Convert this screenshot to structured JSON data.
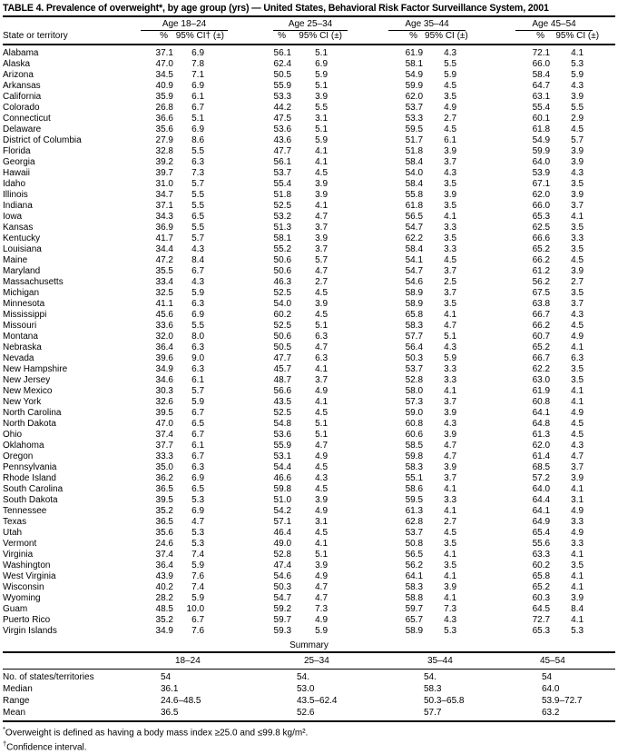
{
  "title": "TABLE 4. Prevalence of overweight*, by age group (yrs) — United States, Behavioral Risk Factor Surveillance System, 2001",
  "table": {
    "state_col_header": "State or territory",
    "groups": [
      {
        "label": "Age 18–24",
        "pct_header": "%",
        "ci_header": "95% CI† (±)"
      },
      {
        "label": "Age 25–34",
        "pct_header": "%",
        "ci_header": "95% CI (±)"
      },
      {
        "label": "Age 35–44",
        "pct_header": "%",
        "ci_header": "95% CI (±)"
      },
      {
        "label": "Age 45–54",
        "pct_header": "%",
        "ci_header": "95% CI (±)"
      }
    ],
    "rows": [
      {
        "state": "Alabama",
        "values": [
          "37.1",
          "6.9",
          "56.1",
          "5.1",
          "61.9",
          "4.3",
          "72.1",
          "4.1"
        ]
      },
      {
        "state": "Alaska",
        "values": [
          "47.0",
          "7.8",
          "62.4",
          "6.9",
          "58.1",
          "5.5",
          "66.0",
          "5.3"
        ]
      },
      {
        "state": "Arizona",
        "values": [
          "34.5",
          "7.1",
          "50.5",
          "5.9",
          "54.9",
          "5.9",
          "58.4",
          "5.9"
        ]
      },
      {
        "state": "Arkansas",
        "values": [
          "40.9",
          "6.9",
          "55.9",
          "5.1",
          "59.9",
          "4.5",
          "64.7",
          "4.3"
        ]
      },
      {
        "state": "California",
        "values": [
          "35.9",
          "6.1",
          "53.3",
          "3.9",
          "62.0",
          "3.5",
          "63.1",
          "3.9"
        ]
      },
      {
        "state": "Colorado",
        "values": [
          "26.8",
          "6.7",
          "44.2",
          "5.5",
          "53.7",
          "4.9",
          "55.4",
          "5.5"
        ]
      },
      {
        "state": "Connecticut",
        "values": [
          "36.6",
          "5.1",
          "47.5",
          "3.1",
          "53.3",
          "2.7",
          "60.1",
          "2.9"
        ]
      },
      {
        "state": "Delaware",
        "values": [
          "35.6",
          "6.9",
          "53.6",
          "5.1",
          "59.5",
          "4.5",
          "61.8",
          "4.5"
        ]
      },
      {
        "state": "District of Columbia",
        "values": [
          "27.9",
          "8.6",
          "43.6",
          "5.9",
          "51.7",
          "6.1",
          "54.9",
          "5.7"
        ]
      },
      {
        "state": "Florida",
        "values": [
          "32.8",
          "5.5",
          "47.7",
          "4.1",
          "51.8",
          "3.9",
          "59.9",
          "3.9"
        ]
      },
      {
        "state": "Georgia",
        "values": [
          "39.2",
          "6.3",
          "56.1",
          "4.1",
          "58.4",
          "3.7",
          "64.0",
          "3.9"
        ]
      },
      {
        "state": "Hawaii",
        "values": [
          "39.7",
          "7.3",
          "53.7",
          "4.5",
          "54.0",
          "4.3",
          "53.9",
          "4.3"
        ]
      },
      {
        "state": "Idaho",
        "values": [
          "31.0",
          "5.7",
          "55.4",
          "3.9",
          "58.4",
          "3.5",
          "67.1",
          "3.5"
        ]
      },
      {
        "state": "Illinois",
        "values": [
          "34.7",
          "5.5",
          "51.8",
          "3.9",
          "55.8",
          "3.9",
          "62.0",
          "3.9"
        ]
      },
      {
        "state": "Indiana",
        "values": [
          "37.1",
          "5.5",
          "52.5",
          "4.1",
          "61.8",
          "3.5",
          "66.0",
          "3.7"
        ]
      },
      {
        "state": "Iowa",
        "values": [
          "34.3",
          "6.5",
          "53.2",
          "4.7",
          "56.5",
          "4.1",
          "65.3",
          "4.1"
        ]
      },
      {
        "state": "Kansas",
        "values": [
          "36.9",
          "5.5",
          "51.3",
          "3.7",
          "54.7",
          "3.3",
          "62.5",
          "3.5"
        ]
      },
      {
        "state": "Kentucky",
        "values": [
          "41.7",
          "5.7",
          "58.1",
          "3.9",
          "62.2",
          "3.5",
          "66.6",
          "3.3"
        ]
      },
      {
        "state": "Louisiana",
        "values": [
          "34.4",
          "4.3",
          "55.2",
          "3.7",
          "58.4",
          "3.3",
          "65.2",
          "3.5"
        ]
      },
      {
        "state": "Maine",
        "values": [
          "47.2",
          "8.4",
          "50.6",
          "5.7",
          "54.1",
          "4.5",
          "66.2",
          "4.5"
        ]
      },
      {
        "state": "Maryland",
        "values": [
          "35.5",
          "6.7",
          "50.6",
          "4.7",
          "54.7",
          "3.7",
          "61.2",
          "3.9"
        ]
      },
      {
        "state": "Massachusetts",
        "values": [
          "33.4",
          "4.3",
          "46.3",
          "2.7",
          "54.6",
          "2.5",
          "56.2",
          "2.7"
        ]
      },
      {
        "state": "Michigan",
        "values": [
          "32.5",
          "5.9",
          "52.5",
          "4.5",
          "58.9",
          "3.7",
          "67.5",
          "3.5"
        ]
      },
      {
        "state": "Minnesota",
        "values": [
          "41.1",
          "6.3",
          "54.0",
          "3.9",
          "58.9",
          "3.5",
          "63.8",
          "3.7"
        ]
      },
      {
        "state": "Mississippi",
        "values": [
          "45.6",
          "6.9",
          "60.2",
          "4.5",
          "65.8",
          "4.1",
          "66.7",
          "4.3"
        ]
      },
      {
        "state": "Missouri",
        "values": [
          "33.6",
          "5.5",
          "52.5",
          "5.1",
          "58.3",
          "4.7",
          "66.2",
          "4.5"
        ]
      },
      {
        "state": "Montana",
        "values": [
          "32.0",
          "8.0",
          "50.6",
          "6.3",
          "57.7",
          "5.1",
          "60.7",
          "4.9"
        ]
      },
      {
        "state": "Nebraska",
        "values": [
          "36.4",
          "6.3",
          "50.5",
          "4.7",
          "56.4",
          "4.3",
          "65.2",
          "4.1"
        ]
      },
      {
        "state": "Nevada",
        "values": [
          "39.6",
          "9.0",
          "47.7",
          "6.3",
          "50.3",
          "5.9",
          "66.7",
          "6.3"
        ]
      },
      {
        "state": "New Hampshire",
        "values": [
          "34.9",
          "6.3",
          "45.7",
          "4.1",
          "53.7",
          "3.3",
          "62.2",
          "3.5"
        ]
      },
      {
        "state": "New Jersey",
        "values": [
          "34.6",
          "6.1",
          "48.7",
          "3.7",
          "52.8",
          "3.3",
          "63.0",
          "3.5"
        ]
      },
      {
        "state": "New Mexico",
        "values": [
          "30.3",
          "5.7",
          "56.6",
          "4.9",
          "58.0",
          "4.1",
          "61.9",
          "4.1"
        ]
      },
      {
        "state": "New York",
        "values": [
          "32.6",
          "5.9",
          "43.5",
          "4.1",
          "57.3",
          "3.7",
          "60.8",
          "4.1"
        ]
      },
      {
        "state": "North Carolina",
        "values": [
          "39.5",
          "6.7",
          "52.5",
          "4.5",
          "59.0",
          "3.9",
          "64.1",
          "4.9"
        ]
      },
      {
        "state": "North Dakota",
        "values": [
          "47.0",
          "6.5",
          "54.8",
          "5.1",
          "60.8",
          "4.3",
          "64.8",
          "4.5"
        ]
      },
      {
        "state": "Ohio",
        "values": [
          "37.4",
          "6.7",
          "53.6",
          "5.1",
          "60.6",
          "3.9",
          "61.3",
          "4.5"
        ]
      },
      {
        "state": "Oklahoma",
        "values": [
          "37.7",
          "6.1",
          "55.9",
          "4.7",
          "58.5",
          "4.7",
          "62.0",
          "4.3"
        ]
      },
      {
        "state": "Oregon",
        "values": [
          "33.3",
          "6.7",
          "53.1",
          "4.9",
          "59.8",
          "4.7",
          "61.4",
          "4.7"
        ]
      },
      {
        "state": "Pennsylvania",
        "values": [
          "35.0",
          "6.3",
          "54.4",
          "4.5",
          "58.3",
          "3.9",
          "68.5",
          "3.7"
        ]
      },
      {
        "state": "Rhode Island",
        "values": [
          "36.2",
          "6.9",
          "46.6",
          "4.3",
          "55.1",
          "3.7",
          "57.2",
          "3.9"
        ]
      },
      {
        "state": "South Carolina",
        "values": [
          "36.5",
          "6.5",
          "59.8",
          "4.5",
          "58.6",
          "4.1",
          "64.0",
          "4.1"
        ]
      },
      {
        "state": "South Dakota",
        "values": [
          "39.5",
          "5.3",
          "51.0",
          "3.9",
          "59.5",
          "3.3",
          "64.4",
          "3.1"
        ]
      },
      {
        "state": "Tennessee",
        "values": [
          "35.2",
          "6.9",
          "54.2",
          "4.9",
          "61.3",
          "4.1",
          "64.1",
          "4.9"
        ]
      },
      {
        "state": "Texas",
        "values": [
          "36.5",
          "4.7",
          "57.1",
          "3.1",
          "62.8",
          "2.7",
          "64.9",
          "3.3"
        ]
      },
      {
        "state": "Utah",
        "values": [
          "35.6",
          "5.3",
          "46.4",
          "4.5",
          "53.7",
          "4.5",
          "65.4",
          "4.9"
        ]
      },
      {
        "state": "Vermont",
        "values": [
          "24.6",
          "5.3",
          "49.0",
          "4.1",
          "50.8",
          "3.5",
          "55.6",
          "3.3"
        ]
      },
      {
        "state": "Virginia",
        "values": [
          "37.4",
          "7.4",
          "52.8",
          "5.1",
          "56.5",
          "4.1",
          "63.3",
          "4.1"
        ]
      },
      {
        "state": "Washington",
        "values": [
          "36.4",
          "5.9",
          "47.4",
          "3.9",
          "56.2",
          "3.5",
          "60.2",
          "3.5"
        ]
      },
      {
        "state": "West Virginia",
        "values": [
          "43.9",
          "7.6",
          "54.6",
          "4.9",
          "64.1",
          "4.1",
          "65.8",
          "4.1"
        ]
      },
      {
        "state": "Wisconsin",
        "values": [
          "40.2",
          "7.4",
          "50.3",
          "4.7",
          "58.3",
          "3.9",
          "65.2",
          "4.1"
        ]
      },
      {
        "state": "Wyoming",
        "values": [
          "28.2",
          "5.9",
          "54.7",
          "4.7",
          "58.8",
          "4.1",
          "60.3",
          "3.9"
        ]
      },
      {
        "state": "Guam",
        "values": [
          "48.5",
          "10.0",
          "59.2",
          "7.3",
          "59.7",
          "7.3",
          "64.5",
          "8.4"
        ]
      },
      {
        "state": "Puerto Rico",
        "values": [
          "35.2",
          "6.7",
          "59.7",
          "4.9",
          "65.7",
          "4.3",
          "72.7",
          "4.1"
        ]
      },
      {
        "state": "Virgin Islands",
        "values": [
          "34.9",
          "7.6",
          "59.3",
          "5.9",
          "58.9",
          "5.3",
          "65.3",
          "5.3"
        ]
      }
    ]
  },
  "summary": {
    "label": "Summary",
    "col_headers": [
      "18–24",
      "25–34",
      "35–44",
      "45–54"
    ],
    "rows": [
      {
        "label": "No. of states/territories",
        "values": [
          "54",
          "54.",
          "54.",
          "54"
        ]
      },
      {
        "label": "Median",
        "values": [
          "36.1",
          "53.0",
          "58.3",
          "64.0"
        ]
      },
      {
        "label": "Range",
        "values": [
          "24.6–48.5",
          "43.5–62.4",
          "50.3–65.8",
          "53.9–72.7"
        ]
      },
      {
        "label": "Mean",
        "values": [
          "36.5",
          "52.6",
          "57.7",
          "63.2"
        ]
      }
    ]
  },
  "footnotes": [
    {
      "marker": "*",
      "text": "Overweight is defined as having a body mass index ≥25.0 and ≤99.8 kg/m²."
    },
    {
      "marker": "†",
      "text": "Confidence interval."
    }
  ]
}
